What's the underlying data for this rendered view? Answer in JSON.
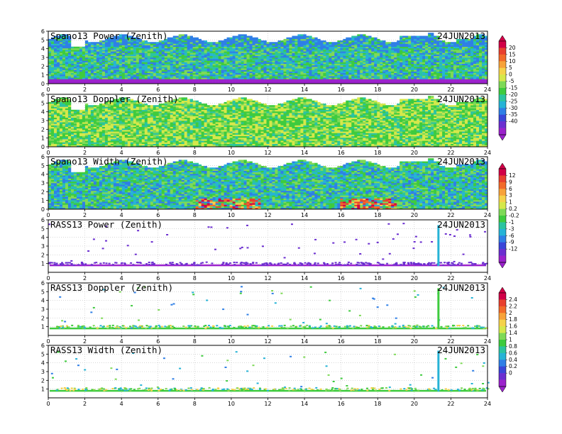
{
  "chart_data": [
    {
      "type": "heatmap",
      "title": "Spano13 Power (Zenith)",
      "date": "24JUN2013",
      "x_ticks": [
        "0",
        "2",
        "4",
        "6",
        "8",
        "10",
        "12",
        "14",
        "16",
        "18",
        "20",
        "22",
        "24"
      ],
      "y_ticks": [
        "0",
        "1",
        "2",
        "3",
        "4",
        "5",
        "6"
      ],
      "xlim": [
        0,
        24
      ],
      "ylim": [
        0,
        6
      ],
      "colorbar_group": 0
    },
    {
      "type": "heatmap",
      "title": "Spano13 Doppler (Zenith)",
      "date": "24JUN2013",
      "x_ticks": [
        "0",
        "2",
        "4",
        "6",
        "8",
        "10",
        "12",
        "14",
        "16",
        "18",
        "20",
        "22",
        "24"
      ],
      "y_ticks": [
        "0",
        "1",
        "2",
        "3",
        "4",
        "5",
        "6"
      ],
      "xlim": [
        0,
        24
      ],
      "ylim": [
        0,
        6
      ],
      "colorbar_group": 0
    },
    {
      "type": "heatmap",
      "title": "Spano13 Width (Zenith)",
      "date": "24JUN2013",
      "x_ticks": [
        "0",
        "2",
        "4",
        "6",
        "8",
        "10",
        "12",
        "14",
        "16",
        "18",
        "20",
        "22",
        "24"
      ],
      "y_ticks": [
        "0",
        "1",
        "2",
        "3",
        "4",
        "5",
        "6"
      ],
      "xlim": [
        0,
        24
      ],
      "ylim": [
        0,
        6
      ],
      "colorbar_group": 1
    },
    {
      "type": "heatmap",
      "title": "RASS13 Power (Zenith)",
      "date": "24JUN2013",
      "x_ticks": [
        "0",
        "2",
        "4",
        "6",
        "8",
        "10",
        "12",
        "14",
        "16",
        "18",
        "20",
        "22",
        "24"
      ],
      "y_ticks": [
        "1",
        "2",
        "3",
        "4",
        "5",
        "6"
      ],
      "xlim": [
        0,
        24
      ],
      "ylim": [
        0,
        6
      ],
      "colorbar_group": 1
    },
    {
      "type": "heatmap",
      "title": "RASS13 Doppler (Zenith)",
      "date": "24JUN2013",
      "x_ticks": [
        "0",
        "2",
        "4",
        "6",
        "8",
        "10",
        "12",
        "14",
        "16",
        "18",
        "20",
        "22",
        "24"
      ],
      "y_ticks": [
        "1",
        "2",
        "3",
        "4",
        "5",
        "6"
      ],
      "xlim": [
        0,
        24
      ],
      "ylim": [
        0,
        6
      ],
      "colorbar_group": 2
    },
    {
      "type": "heatmap",
      "title": "RASS13 Width (Zenith)",
      "date": "24JUN2013",
      "x_ticks": [
        "0",
        "2",
        "4",
        "6",
        "8",
        "10",
        "12",
        "14",
        "16",
        "18",
        "20",
        "22",
        "24"
      ],
      "y_ticks": [
        "1",
        "2",
        "3",
        "4",
        "5",
        "6"
      ],
      "xlim": [
        0,
        24
      ],
      "ylim": [
        0,
        6
      ],
      "colorbar_group": 2
    }
  ],
  "colorbars": [
    {
      "labels": [
        "20",
        "15",
        "10",
        "5",
        "0",
        "-5",
        "-15",
        "-20",
        "-25",
        "-30",
        "-35",
        "-40"
      ],
      "colors": [
        "#d10047",
        "#e8402f",
        "#f26b2a",
        "#f7a23a",
        "#f5d24a",
        "#d5e84a",
        "#7ed957",
        "#3ecb3e",
        "#2bc4a0",
        "#26b3d6",
        "#2f7fe6",
        "#3a46d8",
        "#6b2fd0",
        "#9b22cc"
      ]
    },
    {
      "labels": [
        "12",
        "9",
        "6",
        "3",
        "1",
        "0.2",
        "-0.2",
        "-1",
        "-3",
        "-6",
        "-9",
        "-12"
      ],
      "colors": [
        "#d10047",
        "#e8402f",
        "#f26b2a",
        "#f7a23a",
        "#f5d24a",
        "#d5e84a",
        "#7ed957",
        "#3ecb3e",
        "#2bc4a0",
        "#26b3d6",
        "#2f7fe6",
        "#3a46d8",
        "#6b2fd0",
        "#9b22cc"
      ]
    },
    {
      "labels": [
        "2.4",
        "2.2",
        "2",
        "1.8",
        "1.6",
        "1.4",
        "1",
        "0.8",
        "0.6",
        "0.4",
        "0.2",
        "0"
      ],
      "colors": [
        "#d10047",
        "#e8402f",
        "#f26b2a",
        "#f7a23a",
        "#f5d24a",
        "#d5e84a",
        "#7ed957",
        "#3ecb3e",
        "#2bc4a0",
        "#26b3d6",
        "#2f7fe6",
        "#3a46d8",
        "#6b2fd0",
        "#9b22cc"
      ]
    }
  ]
}
